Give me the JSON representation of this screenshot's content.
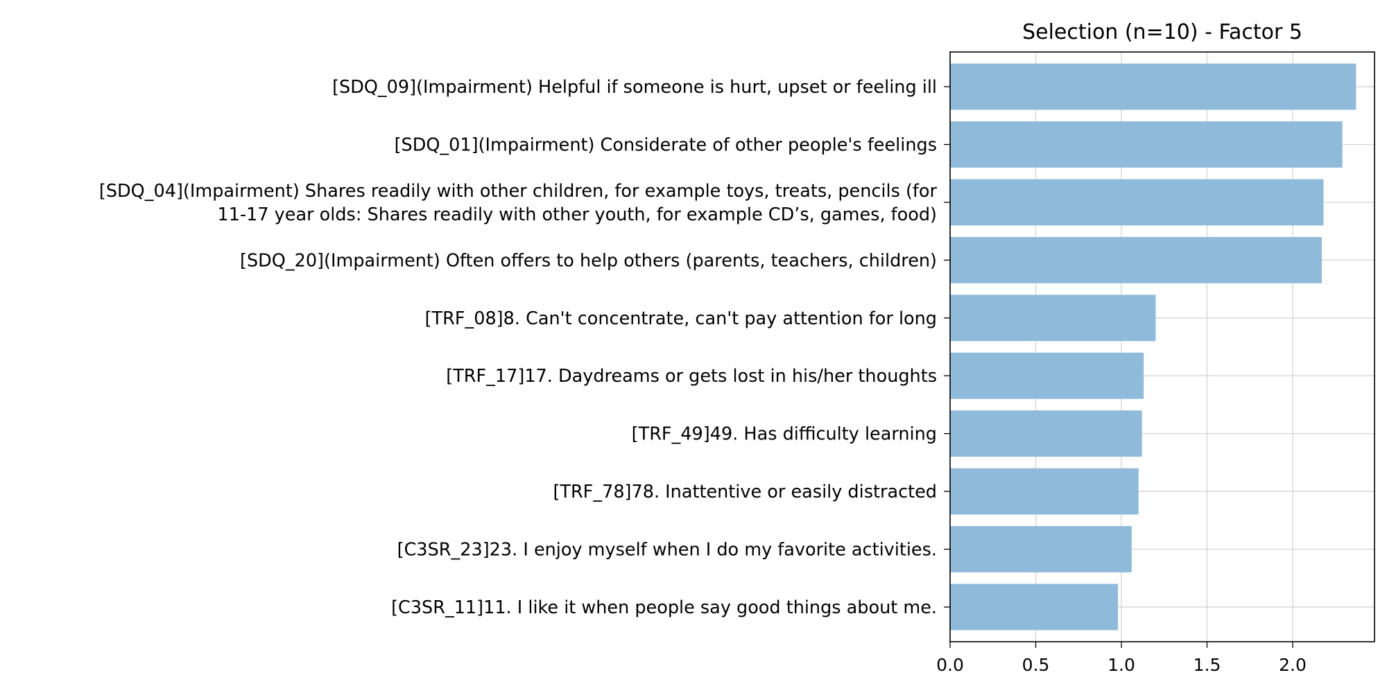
{
  "chart_data": {
    "type": "bar",
    "orientation": "horizontal",
    "title": "Selection (n=10) - Factor 5",
    "xlabel": "",
    "ylabel": "",
    "xlim": [
      0,
      2.48
    ],
    "xticks": [
      {
        "value": 0.0,
        "label": "0.0"
      },
      {
        "value": 0.5,
        "label": "0.5"
      },
      {
        "value": 1.0,
        "label": "1.0"
      },
      {
        "value": 1.5,
        "label": "1.5"
      },
      {
        "value": 2.0,
        "label": "2.0"
      }
    ],
    "grid": true,
    "bar_color": "#8fbad9",
    "categories": [
      [
        "[SDQ_09](Impairment) Helpful if someone is hurt, upset or feeling ill"
      ],
      [
        "[SDQ_01](Impairment) Considerate of other people's feelings"
      ],
      [
        "[SDQ_04](Impairment) Shares readily with other children, for example toys, treats, pencils (for",
        "11-17 year olds: Shares readily with other youth, for example CD’s, games, food)"
      ],
      [
        "[SDQ_20](Impairment) Often offers to help others (parents, teachers, children)"
      ],
      [
        "[TRF_08]8. Can't concentrate, can't pay attention for long"
      ],
      [
        "[TRF_17]17. Daydreams or gets lost in his/her thoughts"
      ],
      [
        "[TRF_49]49. Has difficulty learning"
      ],
      [
        "[TRF_78]78. Inattentive or easily distracted"
      ],
      [
        "[C3SR_23]23. I enjoy myself when I do my favorite activities."
      ],
      [
        "[C3SR_11]11. I like it when people say good things about me."
      ]
    ],
    "values": [
      2.37,
      2.29,
      2.18,
      2.17,
      1.2,
      1.13,
      1.12,
      1.1,
      1.06,
      0.98
    ]
  }
}
